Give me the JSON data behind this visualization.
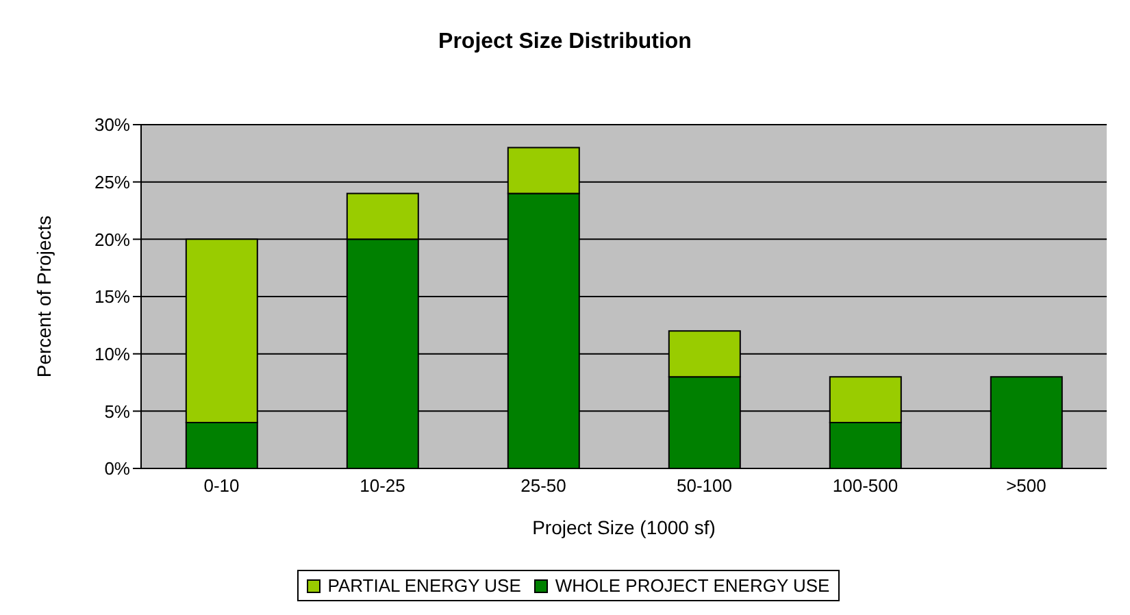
{
  "chart_data": {
    "type": "bar",
    "title": "Project Size Distribution",
    "xlabel": "Project Size (1000 sf)",
    "ylabel": "Percent of Projects",
    "categories": [
      "0-10",
      "10-25",
      "25-50",
      "50-100",
      "100-500",
      ">500"
    ],
    "stacked": true,
    "series": [
      {
        "name": "WHOLE PROJECT ENERGY USE",
        "color": "#008000",
        "values": [
          4,
          20,
          24,
          8,
          4,
          8
        ]
      },
      {
        "name": "PARTIAL ENERGY USE",
        "color": "#99cc00",
        "values": [
          16,
          4,
          4,
          4,
          4,
          0
        ]
      }
    ],
    "ylim": [
      0,
      30
    ],
    "yticks": [
      {
        "value": 0,
        "label": "0%"
      },
      {
        "value": 5,
        "label": "5%"
      },
      {
        "value": 10,
        "label": "10%"
      },
      {
        "value": 15,
        "label": "15%"
      },
      {
        "value": 20,
        "label": "20%"
      },
      {
        "value": 25,
        "label": "25%"
      },
      {
        "value": 30,
        "label": "30%"
      }
    ],
    "grid": "y",
    "legend": "bottom"
  }
}
